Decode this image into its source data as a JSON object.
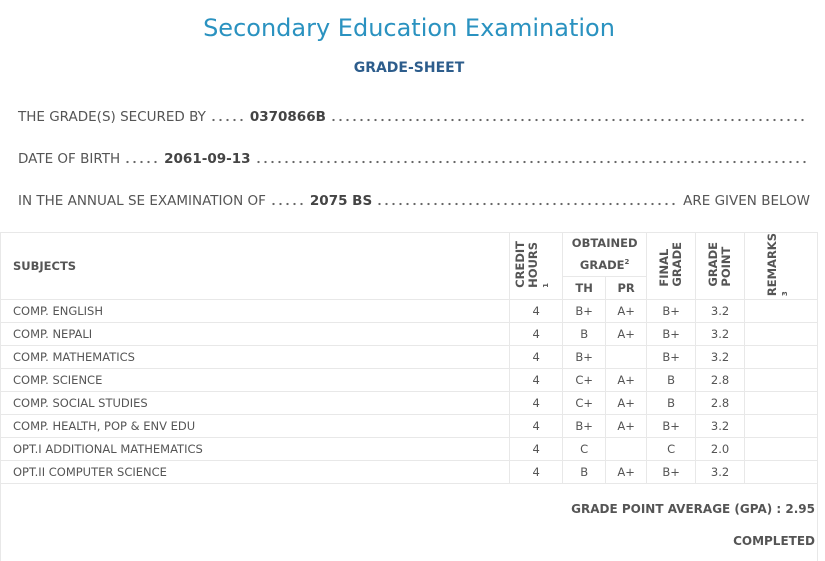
{
  "header": {
    "title": "Secondary Education Examination",
    "subtitle": "GRADE-SHEET"
  },
  "info": [
    {
      "label": "THE GRADE(S) SECURED BY",
      "value": "0370866B"
    },
    {
      "label": "DATE OF BIRTH",
      "value": "2061-09-13"
    },
    {
      "label": "IN THE ANNUAL SE EXAMINATION OF",
      "value": "2075 BS",
      "suffix": "ARE GIVEN BELOW"
    }
  ],
  "table": {
    "headers": {
      "subjects": "SUBJECTS",
      "credit": [
        "CREDIT",
        "HOURS"
      ],
      "credit_note": "1",
      "obtained": [
        "OBTAINED",
        "GRADE"
      ],
      "obtained_note": "2",
      "th": "TH",
      "pr": "PR",
      "final": [
        "FINAL",
        "GRADE"
      ],
      "point": [
        "GRADE",
        "POINT"
      ],
      "remarks": "REMARKS",
      "remarks_note": "3"
    },
    "rows": [
      [
        "COMP. ENGLISH",
        "4",
        "B+",
        "A+",
        "B+",
        "3.2"
      ],
      [
        "COMP. NEPALI",
        "4",
        "B",
        "A+",
        "B+",
        "3.2"
      ],
      [
        "COMP. MATHEMATICS",
        "4",
        "B+",
        null,
        "B+",
        "3.2"
      ],
      [
        "COMP. SCIENCE",
        "4",
        "C+",
        "A+",
        "B",
        "2.8"
      ],
      [
        "COMP. SOCIAL STUDIES",
        "4",
        "C+",
        "A+",
        "B",
        "2.8"
      ],
      [
        "COMP. HEALTH, POP & ENV EDU",
        "4",
        "B+",
        "A+",
        "B+",
        "3.2"
      ],
      [
        "OPT.I ADDITIONAL MATHEMATICS",
        "4",
        "C",
        null,
        "C",
        "2.0"
      ],
      [
        "OPT.II COMPUTER SCIENCE",
        "4",
        "B",
        "A+",
        "B+",
        "3.2"
      ]
    ]
  },
  "gpa": {
    "label": "GRADE POINT AVERAGE (GPA) :",
    "value": "2.95"
  },
  "status": "COMPLETED"
}
